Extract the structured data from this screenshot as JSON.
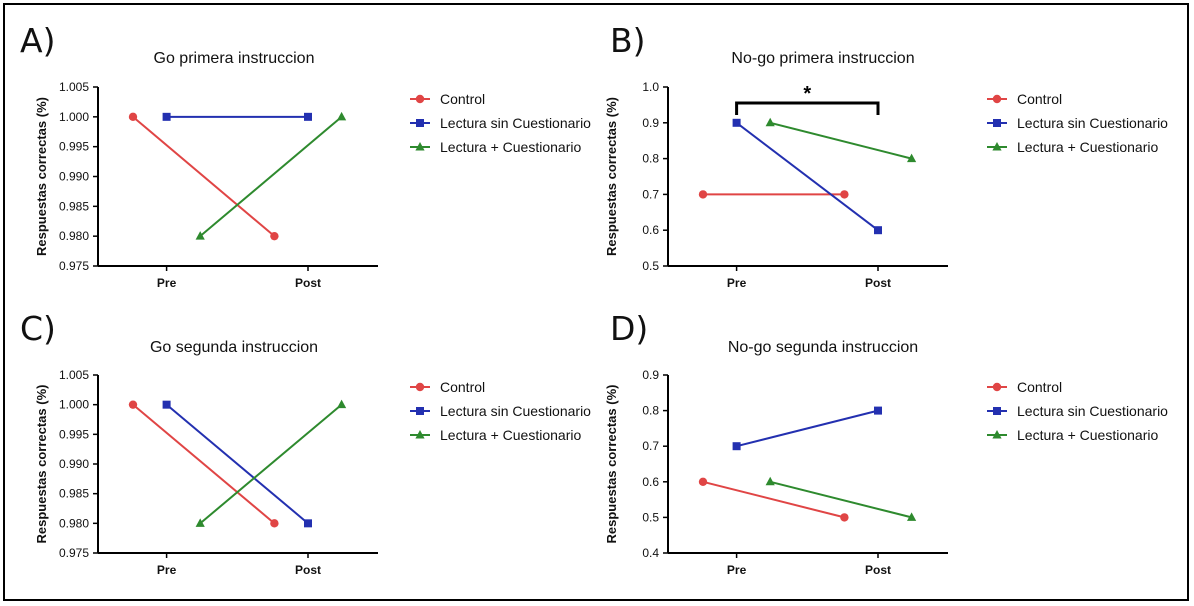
{
  "colors": {
    "Control": "#e04545",
    "Lectura sin Cuestionario": "#2330b0",
    "Lectura + Cuestionario": "#2e8a2e"
  },
  "chart_data": [
    {
      "panel": "A)",
      "type": "line",
      "title": "Go primera instruccion",
      "ylabel": "Respuestas correctas (%)",
      "categories": [
        "Pre",
        "Post"
      ],
      "ylim": [
        0.975,
        1.005
      ],
      "yticks": [
        "1.005",
        "1.000",
        "0.995",
        "0.990",
        "0.985",
        "0.980",
        "0.975"
      ],
      "legend": [
        "Control",
        "Lectura sin Cuestionario",
        "Lectura + Cuestionario"
      ],
      "series": [
        {
          "name": "Control",
          "marker": "circle",
          "values": [
            1.0,
            0.98
          ]
        },
        {
          "name": "Lectura sin Cuestionario",
          "marker": "square",
          "values": [
            1.0,
            1.0
          ]
        },
        {
          "name": "Lectura + Cuestionario",
          "marker": "triangle",
          "values": [
            0.98,
            1.0
          ]
        }
      ]
    },
    {
      "panel": "B)",
      "type": "line",
      "title": "No-go primera instruccion",
      "ylabel": "Respuestas correctas (%)",
      "categories": [
        "Pre",
        "Post"
      ],
      "ylim": [
        0.5,
        1.0
      ],
      "yticks": [
        "1.0",
        "0.9",
        "0.8",
        "0.7",
        "0.6",
        "0.5"
      ],
      "legend": [
        "Control",
        "Lectura sin Cuestionario",
        "Lectura + Cuestionario"
      ],
      "significance": "*",
      "series": [
        {
          "name": "Control",
          "marker": "circle",
          "values": [
            0.7,
            0.7
          ]
        },
        {
          "name": "Lectura sin Cuestionario",
          "marker": "square",
          "values": [
            0.9,
            0.6
          ]
        },
        {
          "name": "Lectura + Cuestionario",
          "marker": "triangle",
          "values": [
            0.9,
            0.8
          ]
        }
      ]
    },
    {
      "panel": "C)",
      "type": "line",
      "title": "Go segunda instruccion",
      "ylabel": "Respuestas correctas (%)",
      "categories": [
        "Pre",
        "Post"
      ],
      "ylim": [
        0.975,
        1.005
      ],
      "yticks": [
        "1.005",
        "1.000",
        "0.995",
        "0.990",
        "0.985",
        "0.980",
        "0.975"
      ],
      "legend": [
        "Control",
        "Lectura sin Cuestionario",
        "Lectura + Cuestionario"
      ],
      "series": [
        {
          "name": "Control",
          "marker": "circle",
          "values": [
            1.0,
            0.98
          ]
        },
        {
          "name": "Lectura sin Cuestionario",
          "marker": "square",
          "values": [
            1.0,
            0.98
          ]
        },
        {
          "name": "Lectura + Cuestionario",
          "marker": "triangle",
          "values": [
            0.98,
            1.0
          ]
        }
      ]
    },
    {
      "panel": "D)",
      "type": "line",
      "title": "No-go segunda instruccion",
      "ylabel": "Respuestas correctas (%)",
      "categories": [
        "Pre",
        "Post"
      ],
      "ylim": [
        0.4,
        0.9
      ],
      "yticks": [
        "0.9",
        "0.8",
        "0.7",
        "0.6",
        "0.5",
        "0.4"
      ],
      "legend": [
        "Control",
        "Lectura sin Cuestionario",
        "Lectura + Cuestionario"
      ],
      "series": [
        {
          "name": "Control",
          "marker": "circle",
          "values": [
            0.6,
            0.5
          ]
        },
        {
          "name": "Lectura sin Cuestionario",
          "marker": "square",
          "values": [
            0.7,
            0.8
          ]
        },
        {
          "name": "Lectura + Cuestionario",
          "marker": "triangle",
          "values": [
            0.6,
            0.5
          ]
        }
      ]
    }
  ]
}
